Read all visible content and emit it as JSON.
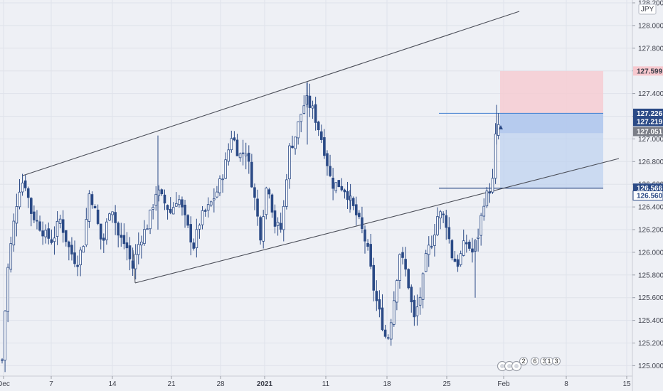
{
  "currency": "JPY",
  "colors": {
    "background": "#eef0f5",
    "grid": "#dfe2ea",
    "candle": "#2b4a86",
    "candle_up_fill": "#ffffff",
    "trendline": "#4a4d57",
    "stop_zone": "#f6cdd2",
    "target_zone": "#bcd0f0",
    "target_zone_dark": "#a9c1ec",
    "label_red": "#f7c8ce",
    "label_blue": "#2b4a86",
    "label_gray": "#7b7e87"
  },
  "chart_data": {
    "type": "candlestick",
    "ylim": [
      124.9,
      128.2
    ],
    "y_ticks": [
      "125.000",
      "125.200",
      "125.400",
      "125.600",
      "125.800",
      "126.000",
      "126.200",
      "126.400",
      "126.600",
      "126.800",
      "127.000",
      "127.200",
      "127.400",
      "127.600",
      "127.800",
      "128.000",
      "128.200"
    ],
    "x_ticks": [
      {
        "label": "Dec",
        "bold": false
      },
      {
        "label": "7",
        "bold": false
      },
      {
        "label": "14",
        "bold": false
      },
      {
        "label": "21",
        "bold": false
      },
      {
        "label": "28",
        "bold": false
      },
      {
        "label": "2021",
        "bold": true
      },
      {
        "label": "11",
        "bold": false
      },
      {
        "label": "18",
        "bold": false
      },
      {
        "label": "25",
        "bold": false
      },
      {
        "label": "Feb",
        "bold": false
      },
      {
        "label": "8",
        "bold": false
      },
      {
        "label": "15",
        "bold": false
      }
    ],
    "price_labels": [
      {
        "text": "127.599",
        "value": 127.599,
        "style": "red"
      },
      {
        "text": "127.226",
        "value": 127.226,
        "style": "blue"
      },
      {
        "text": "127.219",
        "value": 127.219,
        "style": "blue"
      },
      {
        "text": "127.051",
        "value": 127.051,
        "style": "gray"
      },
      {
        "text": "126.566",
        "value": 126.566,
        "style": "blue"
      },
      {
        "text": "126.560",
        "value": 126.56,
        "style": "white"
      }
    ],
    "trade_zone": {
      "stop": 127.599,
      "entry": 127.226,
      "target": 126.566
    },
    "markers": [
      "2",
      "6",
      "3",
      "1",
      "3"
    ]
  }
}
